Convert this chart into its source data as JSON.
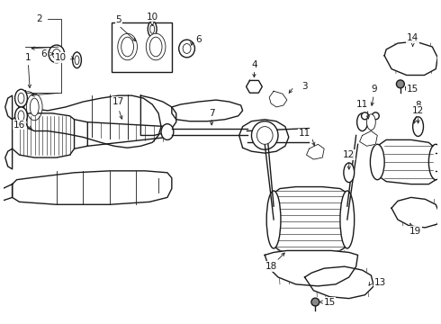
{
  "background_color": "#ffffff",
  "line_color": "#1a1a1a",
  "fig_width": 4.9,
  "fig_height": 3.6,
  "dpi": 100,
  "label_fs": 7.5,
  "lw_main": 1.0,
  "lw_thin": 0.6,
  "lw_thick": 1.5
}
